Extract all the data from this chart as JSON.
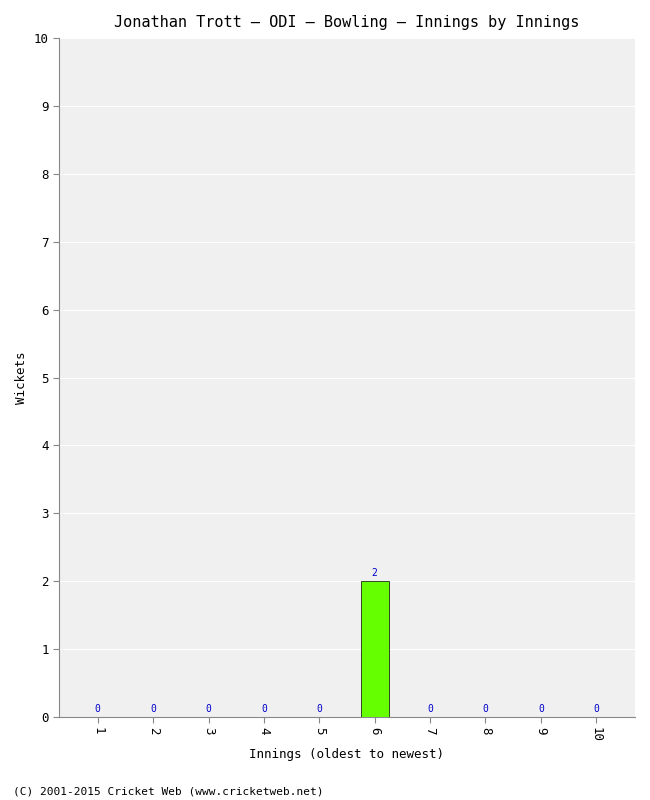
{
  "title": "Jonathan Trott – ODI – Bowling – Innings by Innings",
  "xlabel": "Innings (oldest to newest)",
  "ylabel": "Wickets",
  "categories": [
    1,
    2,
    3,
    4,
    5,
    6,
    7,
    8,
    9,
    10
  ],
  "values": [
    0,
    0,
    0,
    0,
    0,
    2,
    0,
    0,
    0,
    0
  ],
  "bar_color_green": "#66ff00",
  "bar_color_zero": "#ffffff",
  "label_color": "#0000cc",
  "ylim": [
    0,
    10
  ],
  "yticks": [
    0,
    1,
    2,
    3,
    4,
    5,
    6,
    7,
    8,
    9,
    10
  ],
  "plot_bg_color": "#f0f0f0",
  "fig_bg_color": "#ffffff",
  "grid_color": "#ffffff",
  "footer": "(C) 2001-2015 Cricket Web (www.cricketweb.net)",
  "title_fontsize": 11,
  "label_fontsize": 9,
  "tick_fontsize": 9,
  "footer_fontsize": 8,
  "annotation_fontsize": 7,
  "bar_width": 0.5
}
